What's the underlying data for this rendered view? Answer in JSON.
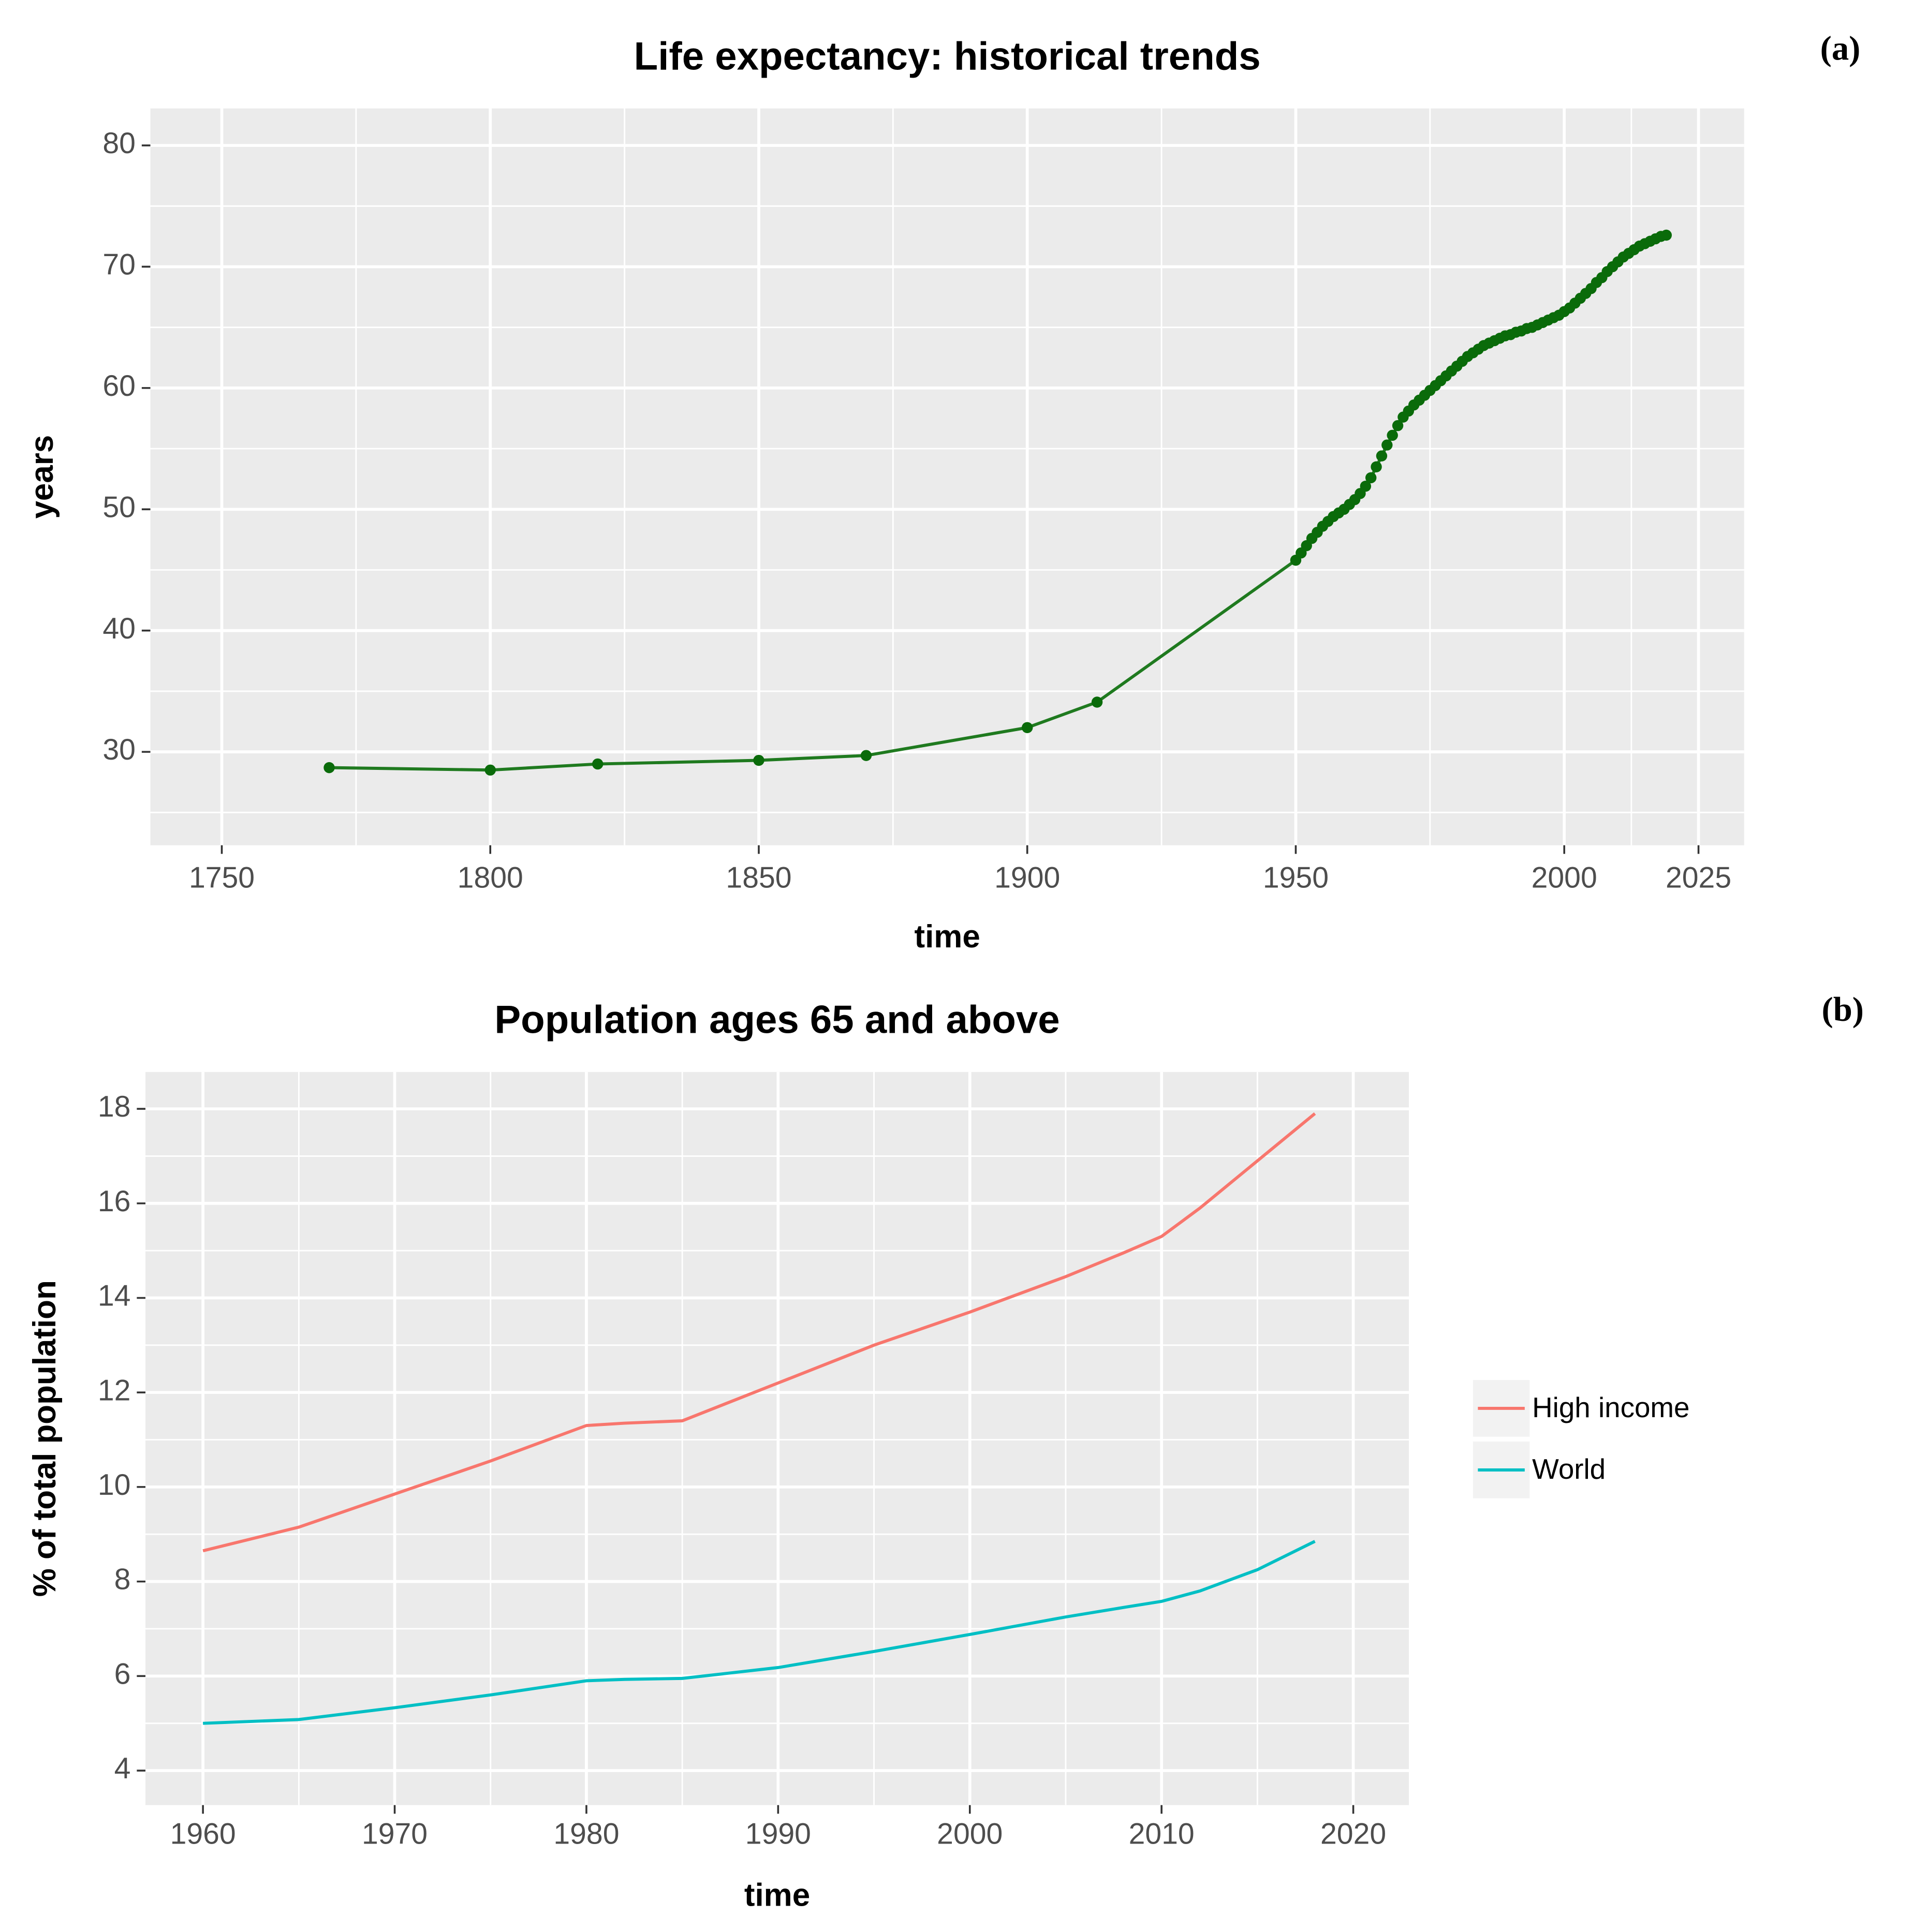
{
  "chart_data": [
    {
      "type": "line",
      "title": "Life expectancy: historical trends",
      "panel_label": "(a)",
      "x_label": "time",
      "y_label": "years",
      "color": "#1f7a1f",
      "marker_color": "#0a6b0a",
      "markers": true,
      "x": [
        1770,
        1800,
        1820,
        1850,
        1870,
        1900,
        1913,
        1950,
        1951,
        1952,
        1953,
        1954,
        1955,
        1956,
        1957,
        1958,
        1959,
        1960,
        1961,
        1962,
        1963,
        1964,
        1965,
        1966,
        1967,
        1968,
        1969,
        1970,
        1971,
        1972,
        1973,
        1974,
        1975,
        1976,
        1977,
        1978,
        1979,
        1980,
        1981,
        1982,
        1983,
        1984,
        1985,
        1986,
        1987,
        1988,
        1989,
        1990,
        1991,
        1992,
        1993,
        1994,
        1995,
        1996,
        1997,
        1998,
        1999,
        2000,
        2001,
        2002,
        2003,
        2004,
        2005,
        2006,
        2007,
        2008,
        2009,
        2010,
        2011,
        2012,
        2013,
        2014,
        2015,
        2016,
        2017,
        2018,
        2019
      ],
      "values": [
        28.7,
        28.5,
        29.0,
        29.3,
        29.7,
        32.0,
        34.1,
        45.8,
        46.4,
        47.0,
        47.6,
        48.1,
        48.6,
        49.0,
        49.4,
        49.7,
        50.0,
        50.4,
        50.8,
        51.3,
        51.9,
        52.6,
        53.5,
        54.4,
        55.3,
        56.1,
        56.9,
        57.6,
        58.1,
        58.6,
        59.0,
        59.4,
        59.8,
        60.2,
        60.6,
        61.0,
        61.4,
        61.8,
        62.2,
        62.6,
        62.9,
        63.2,
        63.5,
        63.7,
        63.9,
        64.1,
        64.3,
        64.4,
        64.6,
        64.7,
        64.9,
        65.0,
        65.2,
        65.4,
        65.6,
        65.8,
        66.0,
        66.3,
        66.6,
        67.0,
        67.4,
        67.8,
        68.2,
        68.7,
        69.1,
        69.6,
        70.0,
        70.4,
        70.8,
        71.1,
        71.4,
        71.7,
        71.9,
        72.1,
        72.3,
        72.5,
        72.6
      ],
      "xlim": [
        1736.7,
        2033.5
      ],
      "xticks": [
        1750,
        1800,
        1850,
        1900,
        1950,
        2000,
        2025
      ],
      "ylim": [
        22.3,
        83.05
      ],
      "yticks": [
        30,
        40,
        50,
        60,
        70,
        80
      ],
      "grid": true
    },
    {
      "type": "line",
      "title": "Population ages 65 and above",
      "panel_label": "(b)",
      "x_label": "time",
      "y_label": "% of total population",
      "legend": "right",
      "x": [
        1960,
        1965,
        1970,
        1975,
        1980,
        1982,
        1985,
        1990,
        1995,
        2000,
        2005,
        2008,
        2010,
        2012,
        2015,
        2018
      ],
      "series": [
        {
          "name": "High income",
          "color": "#f8766d",
          "values": [
            8.65,
            9.15,
            9.85,
            10.55,
            11.3,
            11.35,
            11.4,
            12.2,
            13.0,
            13.7,
            14.45,
            14.95,
            15.3,
            15.9,
            16.9,
            17.9
          ]
        },
        {
          "name": "World",
          "color": "#00bfc4",
          "values": [
            5.0,
            5.08,
            5.33,
            5.6,
            5.9,
            5.93,
            5.95,
            6.18,
            6.52,
            6.88,
            7.25,
            7.45,
            7.58,
            7.8,
            8.25,
            8.85
          ]
        }
      ],
      "xlim": [
        1957.0,
        2022.9
      ],
      "xticks": [
        1960,
        1970,
        1980,
        1990,
        2000,
        2010,
        2020
      ],
      "ylim": [
        3.27,
        18.78
      ],
      "yticks": [
        4,
        6,
        8,
        10,
        12,
        14,
        16,
        18
      ],
      "grid": true
    }
  ]
}
